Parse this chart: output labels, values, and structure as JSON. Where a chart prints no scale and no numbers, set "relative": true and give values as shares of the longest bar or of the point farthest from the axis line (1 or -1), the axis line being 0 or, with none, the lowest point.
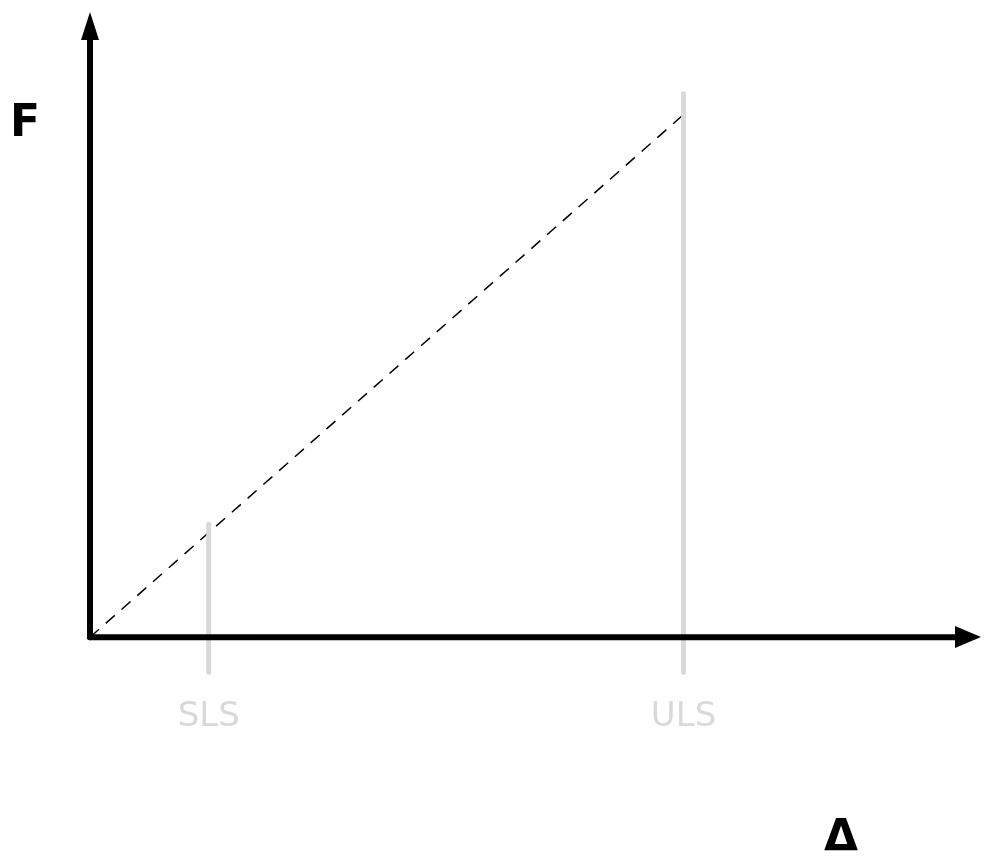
{
  "chart_data": {
    "type": "line",
    "xlabel": "Δ",
    "ylabel": "F",
    "relative": true,
    "categories": [
      null,
      "SLS",
      null,
      null,
      null,
      "ULS",
      null,
      null
    ],
    "series": [
      {
        "color": "#000000",
        "values": [
          0,
          0.2,
          0.4,
          0.6,
          0.8,
          1,
          null,
          null
        ],
        "line_style": "dashed"
      }
    ],
    "grid": false,
    "legend": false,
    "marker": "none",
    "ref_lines": [
      {
        "axis": "x",
        "value": "SLS",
        "color": "#d9d9d9"
      },
      {
        "axis": "x",
        "value": "ULS",
        "color": "#d9d9d9"
      }
    ]
  }
}
